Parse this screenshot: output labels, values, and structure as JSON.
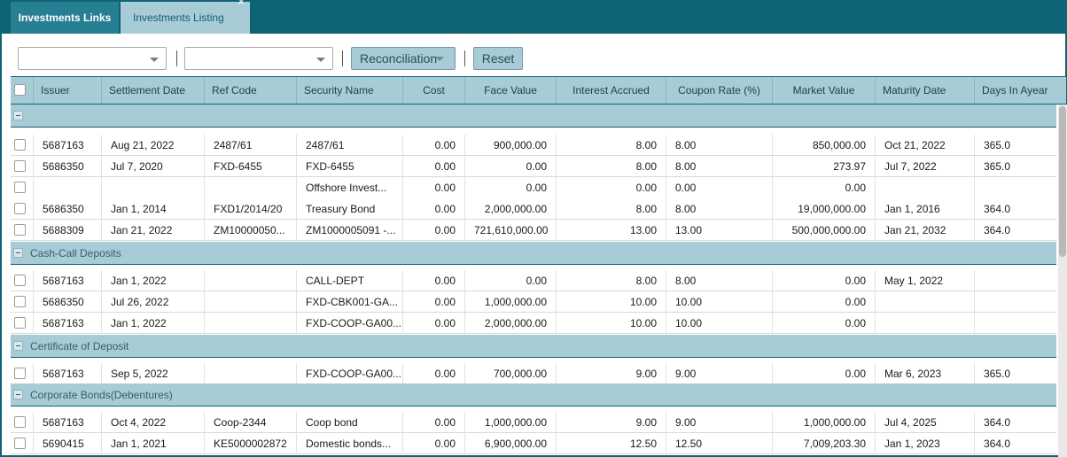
{
  "tabs": {
    "links": "Investments Links",
    "listing": "Investments Listing",
    "close": "×"
  },
  "toolbar": {
    "filter1_value": "",
    "filter2_value": "",
    "reconciliation_label": "Reconciliation",
    "reset_label": "Reset"
  },
  "columns": [
    "Issuer",
    "Settlement Date",
    "Ref Code",
    "Security Name",
    "Cost",
    "Face Value",
    "Interest Accrued",
    "Coupon Rate (%)",
    "Market Value",
    "Maturity Date",
    "Days In Ayear"
  ],
  "groups": [
    {
      "name": "",
      "rows": [
        [
          "5687163",
          "Aug 21, 2022",
          "2487/61",
          "2487/61",
          "0.00",
          "900,000.00",
          "8.00",
          "8.00",
          "850,000.00",
          "Oct 21, 2022",
          "365.0"
        ],
        [
          "5686350",
          "Jul 7, 2020",
          "FXD-6455",
          "FXD-6455",
          "0.00",
          "0.00",
          "8.00",
          "8.00",
          "273.97",
          "Jul 7, 2022",
          "365.0"
        ],
        [
          "",
          "",
          "",
          "Offshore Invest...",
          "0.00",
          "0.00",
          "0.00",
          "0.00",
          "0.00",
          "",
          ""
        ],
        [
          "5686350",
          "Jan 1, 2014",
          "FXD1/2014/20",
          "Treasury Bond",
          "0.00",
          "2,000,000.00",
          "8.00",
          "8.00",
          "19,000,000.00",
          "Jan 1, 2016",
          "364.0"
        ],
        [
          "5688309",
          "Jan 21, 2022",
          "ZM10000050...",
          "ZM1000005091 -...",
          "0.00",
          "721,610,000.00",
          "13.00",
          "13.00",
          "500,000,000.00",
          "Jan 21, 2032",
          "364.0"
        ]
      ]
    },
    {
      "name": "Cash-Call Deposits",
      "rows": [
        [
          "5687163",
          "Jan 1, 2022",
          "",
          "CALL-DEPT",
          "0.00",
          "0.00",
          "8.00",
          "8.00",
          "0.00",
          "May 1, 2022",
          ""
        ],
        [
          "5686350",
          "Jul 26, 2022",
          "",
          "FXD-CBK001-GA...",
          "0.00",
          "1,000,000.00",
          "10.00",
          "10.00",
          "0.00",
          "",
          ""
        ],
        [
          "5687163",
          "Jan 1, 2022",
          "",
          "FXD-COOP-GA00...",
          "0.00",
          "2,000,000.00",
          "10.00",
          "10.00",
          "0.00",
          "",
          ""
        ]
      ]
    },
    {
      "name": "Certificate of Deposit",
      "rows": [
        [
          "5687163",
          "Sep 5, 2022",
          "",
          "FXD-COOP-GA00...",
          "0.00",
          "700,000.00",
          "9.00",
          "9.00",
          "0.00",
          "Mar 6, 2023",
          "365.0"
        ]
      ]
    },
    {
      "name": "Corporate Bonds(Debentures)",
      "rows": [
        [
          "5687163",
          "Oct 4, 2022",
          "Coop-2344",
          "Coop bond",
          "0.00",
          "1,000,000.00",
          "9.00",
          "9.00",
          "1,000,000.00",
          "Jul 4, 2025",
          "364.0"
        ],
        [
          "5690415",
          "Jan 1, 2021",
          "KE5000002872",
          "Domestic bonds...",
          "0.00",
          "6,900,000.00",
          "12.50",
          "12.50",
          "7,009,203.30",
          "Jan 1, 2023",
          "364.0"
        ]
      ]
    }
  ]
}
